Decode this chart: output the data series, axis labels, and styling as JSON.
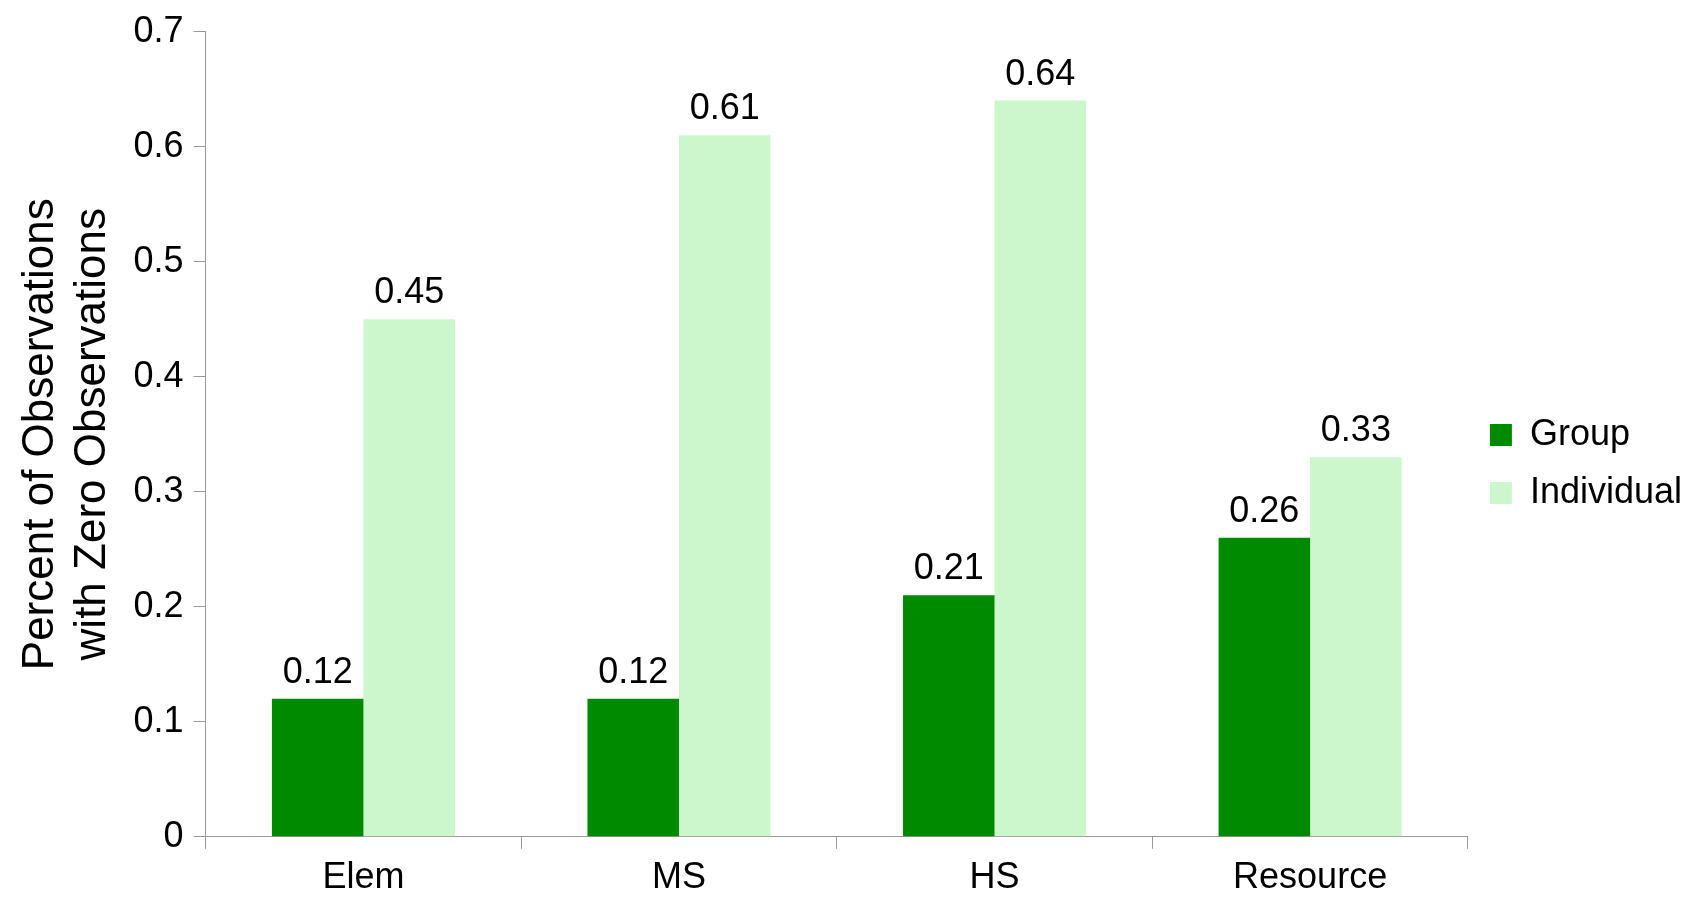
{
  "chart_data": {
    "type": "bar",
    "ylabel": "Percent of Observations with Zero Observations",
    "categories": [
      "Elem",
      "MS",
      "HS",
      "Resource"
    ],
    "series": [
      {
        "name": "Group",
        "color": "#008a00",
        "values": [
          0.12,
          0.12,
          0.21,
          0.26
        ]
      },
      {
        "name": "Individual",
        "color": "#ccf7cc",
        "values": [
          0.45,
          0.61,
          0.64,
          0.33
        ]
      }
    ],
    "ylim": [
      0,
      0.7
    ],
    "yticks": [
      0,
      0.1,
      0.2,
      0.3,
      0.4,
      0.5,
      0.6,
      0.7
    ],
    "data_labels": true,
    "legend": "right"
  }
}
